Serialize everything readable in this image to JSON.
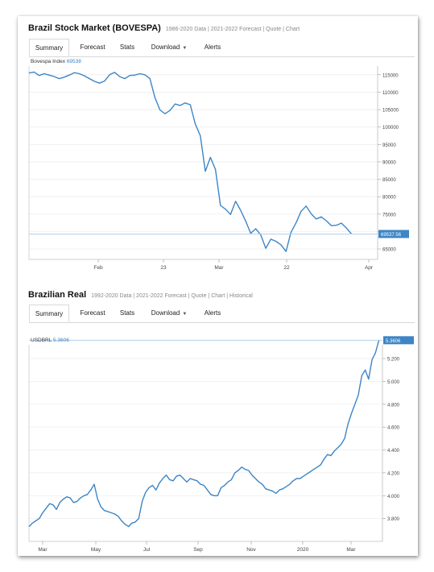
{
  "panel1": {
    "title": "Brazil Stock Market (BOVESPA)",
    "links": "1986-2020 Data | 2021-2022 Forecast | Quote | Chart",
    "tabs": [
      "Summary",
      "Forecast",
      "Stats",
      "Download",
      "Alerts"
    ]
  },
  "panel2": {
    "title": "Brazilian Real",
    "links": "1992-2020 Data | 2021-2022 Forecast | Quote | Chart | Historical",
    "tabs": [
      "Summary",
      "Forecast",
      "Stats",
      "Download",
      "Alerts"
    ]
  },
  "colors": {
    "line": "#3d85c6",
    "grid": "#eeeeee",
    "axis": "#999999"
  },
  "chart_data": [
    {
      "type": "line",
      "series": [
        {
          "label_prefix": "Bovespa Index",
          "label_value": "69538",
          "last_value": "69537.56",
          "values": [
            115500,
            115800,
            114800,
            115300,
            114900,
            114500,
            113900,
            114300,
            114900,
            115600,
            115300,
            114700,
            113900,
            113100,
            112600,
            113200,
            115000,
            115700,
            114500,
            113900,
            114800,
            114900,
            115300,
            115000,
            113900,
            108400,
            104900,
            103800,
            104800,
            106600,
            106200,
            106900,
            106400,
            100900,
            97500,
            87300,
            91300,
            87800,
            77500,
            76400,
            74900,
            78700,
            76100,
            73000,
            69500,
            70800,
            69000,
            65200,
            67800,
            67200,
            66200,
            64300,
            69800,
            72500,
            75800,
            77300,
            75100,
            73600,
            74200,
            73100,
            71700,
            71800,
            72400,
            71000,
            69300
          ]
        }
      ],
      "ylim": [
        62000,
        117500
      ],
      "yticks": [
        "115000",
        "110000",
        "105000",
        "100000",
        "95000",
        "90000",
        "85000",
        "80000",
        "75000",
        "70000",
        "65000"
      ],
      "xticks": [
        "Feb",
        "23",
        "Mar",
        "22",
        "Apr"
      ]
    },
    {
      "type": "line",
      "series": [
        {
          "label_prefix": "USDBRL",
          "label_value": "5.3606",
          "last_value": "5.3606",
          "values": [
            3.73,
            3.76,
            3.78,
            3.8,
            3.85,
            3.89,
            3.93,
            3.92,
            3.88,
            3.94,
            3.97,
            3.99,
            3.98,
            3.94,
            3.95,
            3.98,
            4.0,
            4.01,
            4.05,
            4.1,
            3.97,
            3.9,
            3.87,
            3.86,
            3.85,
            3.84,
            3.82,
            3.78,
            3.75,
            3.73,
            3.76,
            3.77,
            3.8,
            3.95,
            4.03,
            4.07,
            4.09,
            4.05,
            4.11,
            4.15,
            4.18,
            4.14,
            4.13,
            4.17,
            4.18,
            4.15,
            4.12,
            4.15,
            4.14,
            4.13,
            4.1,
            4.09,
            4.05,
            4.01,
            4.0,
            4.0,
            4.07,
            4.09,
            4.12,
            4.14,
            4.2,
            4.22,
            4.25,
            4.23,
            4.22,
            4.18,
            4.15,
            4.12,
            4.1,
            4.06,
            4.05,
            4.04,
            4.02,
            4.05,
            4.06,
            4.08,
            4.1,
            4.13,
            4.15,
            4.15,
            4.17,
            4.19,
            4.21,
            4.23,
            4.25,
            4.27,
            4.32,
            4.36,
            4.35,
            4.39,
            4.42,
            4.45,
            4.5,
            4.63,
            4.72,
            4.8,
            4.88,
            5.05,
            5.1,
            5.02,
            5.19,
            5.25,
            5.36
          ]
        }
      ],
      "ylim": [
        3.6,
        5.32
      ],
      "yticks": [
        "5.200",
        "5.000",
        "4.800",
        "4.600",
        "4.400",
        "4.200",
        "4.000",
        "3.800"
      ],
      "xticks": [
        "Mar",
        "May",
        "Jul",
        "Sep",
        "Nov",
        "2020",
        "Mar"
      ]
    }
  ]
}
